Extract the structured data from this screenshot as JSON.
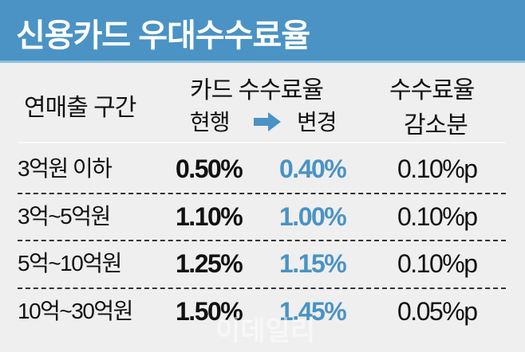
{
  "title": "신용카드 우대수수료율",
  "header": {
    "col1": "연매출 구간",
    "col2_title": "카드 수수료율",
    "col2_current": "현행",
    "col2_new": "변경",
    "col3_line1": "수수료율",
    "col3_line2": "감소분"
  },
  "rows": [
    {
      "range": "3억원 이하",
      "current": "0.50%",
      "new": "0.40%",
      "reduction": "0.10%p"
    },
    {
      "range": "3억~5억원",
      "current": "1.10%",
      "new": "1.00%",
      "reduction": "0.10%p"
    },
    {
      "range": "5억~10억원",
      "current": "1.25%",
      "new": "1.15%",
      "reduction": "0.10%p"
    },
    {
      "range": "10억~30억원",
      "current": "1.50%",
      "new": "1.45%",
      "reduction": "0.05%p"
    }
  ],
  "watermark": "이데일리",
  "colors": {
    "accent": "#4a93c4",
    "background": "#efefef"
  },
  "icons": {
    "arrow": "arrow-right-icon"
  }
}
